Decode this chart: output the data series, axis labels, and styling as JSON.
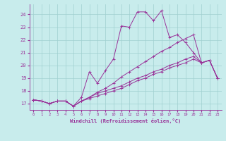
{
  "title": "",
  "xlabel": "Windchill (Refroidissement éolien,°C)",
  "xlim": [
    -0.5,
    23.5
  ],
  "ylim": [
    16.5,
    24.8
  ],
  "yticks": [
    17,
    18,
    19,
    20,
    21,
    22,
    23,
    24
  ],
  "xticks": [
    0,
    1,
    2,
    3,
    4,
    5,
    6,
    7,
    8,
    9,
    10,
    11,
    12,
    13,
    14,
    15,
    16,
    17,
    18,
    19,
    20,
    21,
    22,
    23
  ],
  "bg_color": "#c8ecec",
  "grid_color": "#a0d0d0",
  "line_color": "#993399",
  "lines": [
    {
      "x": [
        0,
        1,
        2,
        3,
        4,
        5,
        6,
        7,
        8,
        9,
        10,
        11,
        12,
        13,
        14,
        15,
        16,
        17,
        18,
        19,
        20,
        21,
        22,
        23
      ],
      "y": [
        17.3,
        17.2,
        17.0,
        17.2,
        17.2,
        16.8,
        17.5,
        19.5,
        18.6,
        19.6,
        20.5,
        23.1,
        23.0,
        24.2,
        24.2,
        23.5,
        24.3,
        22.2,
        22.4,
        21.8,
        21.0,
        20.2,
        20.4,
        19.0
      ]
    },
    {
      "x": [
        0,
        1,
        2,
        3,
        4,
        5,
        6,
        7,
        8,
        9,
        10,
        11,
        12,
        13,
        14,
        15,
        16,
        17,
        18,
        19,
        20,
        21,
        22,
        23
      ],
      "y": [
        17.3,
        17.2,
        17.0,
        17.2,
        17.2,
        16.8,
        17.2,
        17.5,
        17.8,
        18.0,
        18.2,
        18.4,
        18.7,
        19.0,
        19.2,
        19.5,
        19.7,
        20.0,
        20.2,
        20.5,
        20.7,
        20.2,
        20.4,
        19.0
      ]
    },
    {
      "x": [
        0,
        1,
        2,
        3,
        4,
        5,
        6,
        7,
        8,
        9,
        10,
        11,
        12,
        13,
        14,
        15,
        16,
        17,
        18,
        19,
        20,
        21,
        22,
        23
      ],
      "y": [
        17.3,
        17.2,
        17.0,
        17.2,
        17.2,
        16.8,
        17.2,
        17.5,
        17.9,
        18.2,
        18.6,
        19.1,
        19.5,
        19.9,
        20.3,
        20.7,
        21.1,
        21.4,
        21.8,
        22.1,
        22.4,
        20.2,
        20.4,
        19.0
      ]
    },
    {
      "x": [
        0,
        1,
        2,
        3,
        4,
        5,
        6,
        7,
        8,
        9,
        10,
        11,
        12,
        13,
        14,
        15,
        16,
        17,
        18,
        19,
        20,
        21,
        22,
        23
      ],
      "y": [
        17.3,
        17.2,
        17.0,
        17.2,
        17.2,
        16.8,
        17.2,
        17.4,
        17.6,
        17.8,
        18.0,
        18.2,
        18.5,
        18.8,
        19.0,
        19.3,
        19.5,
        19.8,
        20.0,
        20.2,
        20.5,
        20.2,
        20.4,
        19.0
      ]
    }
  ]
}
